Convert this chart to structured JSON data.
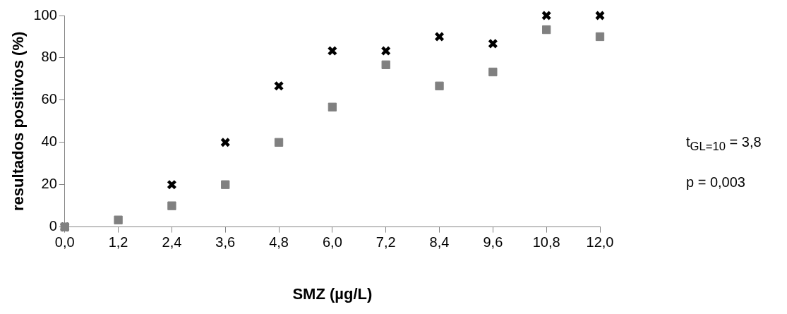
{
  "chart_data": {
    "type": "scatter",
    "xlabel": "SMZ (µg/L)",
    "ylabel": "resultados positivos (%)",
    "x": [
      0,
      1.2,
      2.4,
      3.6,
      4.8,
      6.0,
      7.2,
      8.4,
      9.6,
      10.8,
      12.0
    ],
    "series": [
      {
        "color": "#000000",
        "marker": "cross",
        "values": [
          0,
          null,
          20,
          40,
          66.7,
          83.3,
          83.3,
          90,
          86.7,
          100,
          100
        ]
      },
      {
        "color": "#808080",
        "marker": "square",
        "values": [
          0,
          3.3,
          10,
          20,
          40,
          56.7,
          76.7,
          66.7,
          73.3,
          93.3,
          90
        ]
      }
    ],
    "xlim": [
      0,
      12
    ],
    "xticks": [
      {
        "value": 0,
        "label": "0,0"
      },
      {
        "value": 1.2,
        "label": "1,2"
      },
      {
        "value": 2.4,
        "label": "2,4"
      },
      {
        "value": 3.6,
        "label": "3,6"
      },
      {
        "value": 4.8,
        "label": "4,8"
      },
      {
        "value": 6,
        "label": "6,0"
      },
      {
        "value": 7.2,
        "label": "7,2"
      },
      {
        "value": 8.4,
        "label": "8,4"
      },
      {
        "value": 9.6,
        "label": "9,6"
      },
      {
        "value": 10.8,
        "label": "10,8"
      },
      {
        "value": 12,
        "label": "12,0"
      }
    ],
    "ylim": [
      0,
      100
    ],
    "yticks": [
      0,
      20,
      40,
      60,
      80,
      100
    ],
    "grid": false,
    "legend": false,
    "annotations": [
      "t$_{GL=10}$ = 3,8",
      "p = 0,003"
    ]
  }
}
